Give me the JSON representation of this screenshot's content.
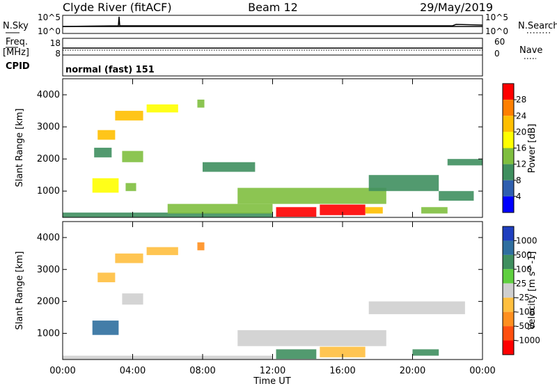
{
  "header": {
    "station": "Clyde River (fitACF)",
    "beam": "Beam 12",
    "date": "29/May/2019"
  },
  "top_panel": {
    "left_label": "N.Sky",
    "right_label": "N.Search",
    "left_ticks": [
      "10^5",
      "10^0"
    ],
    "right_ticks": [
      "10^5",
      "10^0"
    ],
    "freq_label": "Freq.",
    "freq_unit": "[MHz]",
    "freq_ticks": [
      "18",
      "8"
    ],
    "nave_label": "Nave",
    "nave_ticks": [
      "60",
      "0"
    ],
    "cpid_label": "CPID",
    "cpid_value": "normal (fast) 151"
  },
  "chart_data": [
    {
      "type": "heatmap",
      "name": "power",
      "ylabel": "Slant Range [km]",
      "xlabel": "Time UT",
      "x_ticks": [
        "00:00",
        "04:00",
        "08:00",
        "12:00",
        "16:00",
        "20:00",
        "00:00"
      ],
      "y_ticks": [
        "1000",
        "2000",
        "3000",
        "4000"
      ],
      "ylim": [
        180,
        4500
      ],
      "colorbar_label": "Power [dB]",
      "colorbar_ticks": [
        "28",
        "24",
        "20",
        "16",
        "12",
        "8",
        "4"
      ],
      "colorbar_colors": [
        "#ff0000",
        "#ff7f00",
        "#ffbf00",
        "#ffff00",
        "#7fbf3f",
        "#3f8f5f",
        "#2f5faf",
        "#0000ff"
      ],
      "regions": [
        {
          "t0": 2.0,
          "t1": 3.0,
          "r0": 2600,
          "r1": 2900,
          "v": 20
        },
        {
          "t0": 3.0,
          "t1": 4.6,
          "r0": 3200,
          "r1": 3500,
          "v": 22
        },
        {
          "t0": 4.8,
          "t1": 6.6,
          "r0": 3450,
          "r1": 3700,
          "v": 18
        },
        {
          "t0": 7.7,
          "t1": 8.1,
          "r0": 3600,
          "r1": 3850,
          "v": 14
        },
        {
          "t0": 1.8,
          "t1": 2.8,
          "r0": 2050,
          "r1": 2350,
          "v": 8
        },
        {
          "t0": 3.4,
          "t1": 4.6,
          "r0": 1900,
          "r1": 2250,
          "v": 14
        },
        {
          "t0": 1.7,
          "t1": 3.2,
          "r0": 950,
          "r1": 1400,
          "v": 16
        },
        {
          "t0": 3.6,
          "t1": 4.2,
          "r0": 1000,
          "r1": 1250,
          "v": 12
        },
        {
          "t0": 0.0,
          "t1": 12.0,
          "r0": 180,
          "r1": 330,
          "v": 10
        },
        {
          "t0": 6.0,
          "t1": 12.0,
          "r0": 300,
          "r1": 600,
          "v": 14
        },
        {
          "t0": 12.2,
          "t1": 14.5,
          "r0": 200,
          "r1": 500,
          "v": 28
        },
        {
          "t0": 14.7,
          "t1": 17.3,
          "r0": 250,
          "r1": 580,
          "v": 28
        },
        {
          "t0": 17.3,
          "t1": 18.3,
          "r0": 300,
          "r1": 500,
          "v": 20
        },
        {
          "t0": 10.0,
          "t1": 18.5,
          "r0": 600,
          "r1": 1100,
          "v": 14
        },
        {
          "t0": 17.5,
          "t1": 21.5,
          "r0": 1000,
          "r1": 1500,
          "v": 10
        },
        {
          "t0": 20.5,
          "t1": 22.0,
          "r0": 300,
          "r1": 500,
          "v": 12
        },
        {
          "t0": 22.0,
          "t1": 24.0,
          "r0": 1800,
          "r1": 2000,
          "v": 8
        },
        {
          "t0": 8.0,
          "t1": 11.0,
          "r0": 1600,
          "r1": 1900,
          "v": 8
        },
        {
          "t0": 21.5,
          "t1": 23.5,
          "r0": 700,
          "r1": 1000,
          "v": 8
        }
      ]
    },
    {
      "type": "heatmap",
      "name": "velocity",
      "ylabel": "Slant Range [km]",
      "xlabel": "Time UT",
      "x_ticks": [
        "00:00",
        "04:00",
        "08:00",
        "12:00",
        "16:00",
        "20:00",
        "00:00"
      ],
      "y_ticks": [
        "1000",
        "2000",
        "3000",
        "4000"
      ],
      "ylim": [
        180,
        4500
      ],
      "colorbar_label": "Velocity [m s^-1]",
      "colorbar_ticks": [
        "1000",
        "500",
        "100",
        "25",
        "-25",
        "-100",
        "-500",
        "-1000"
      ],
      "colorbar_colors": [
        "#1f3fbf",
        "#2f6f9f",
        "#3f8f5f",
        "#5fcf3f",
        "#cfcfcf",
        "#ffbf3f",
        "#ff8f1f",
        "#ff4f0f",
        "#ff0000"
      ],
      "regions": [
        {
          "t0": 2.0,
          "t1": 3.0,
          "r0": 2600,
          "r1": 2900,
          "v": -100
        },
        {
          "t0": 3.0,
          "t1": 4.6,
          "r0": 3200,
          "r1": 3500,
          "v": -100
        },
        {
          "t0": 4.8,
          "t1": 6.6,
          "r0": 3450,
          "r1": 3700,
          "v": -100
        },
        {
          "t0": 7.7,
          "t1": 8.1,
          "r0": 3600,
          "r1": 3850,
          "v": -500
        },
        {
          "t0": 3.4,
          "t1": 4.6,
          "r0": 1900,
          "r1": 2250,
          "v": 0
        },
        {
          "t0": 1.7,
          "t1": 3.2,
          "r0": 950,
          "r1": 1400,
          "v": 500
        },
        {
          "t0": 12.2,
          "t1": 14.5,
          "r0": 200,
          "r1": 500,
          "v": 100
        },
        {
          "t0": 14.7,
          "t1": 17.3,
          "r0": 250,
          "r1": 580,
          "v": -100
        },
        {
          "t0": 10.0,
          "t1": 18.5,
          "r0": 600,
          "r1": 1100,
          "v": 0
        },
        {
          "t0": 17.5,
          "t1": 23.0,
          "r0": 1600,
          "r1": 2000,
          "v": 0
        },
        {
          "t0": 20.0,
          "t1": 21.5,
          "r0": 300,
          "r1": 500,
          "v": 100
        },
        {
          "t0": 0.0,
          "t1": 12.0,
          "r0": 180,
          "r1": 300,
          "v": -25
        }
      ]
    }
  ]
}
